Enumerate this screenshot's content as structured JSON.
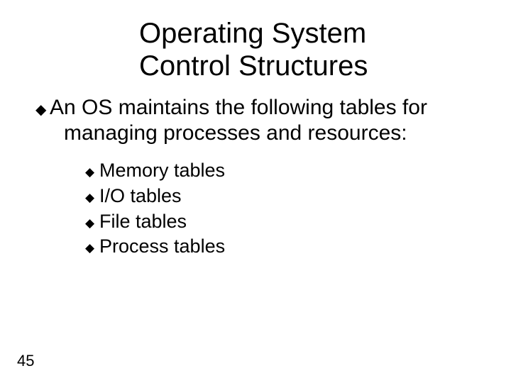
{
  "title_line1": "Operating System",
  "title_line2": "Control Structures",
  "main_bullet_text": "An OS maintains the following tables for managing processes and resources:",
  "sub_items": {
    "item1": "Memory tables",
    "item2": "I/O tables",
    "item3": "File tables",
    "item4": "Process tables"
  },
  "page_number": "45",
  "bullet_char": "◆",
  "colors": {
    "background": "#ffffff",
    "text": "#000000"
  },
  "fonts": {
    "title_size": 40,
    "main_size": 30,
    "sub_size": 27,
    "page_num_size": 22
  }
}
